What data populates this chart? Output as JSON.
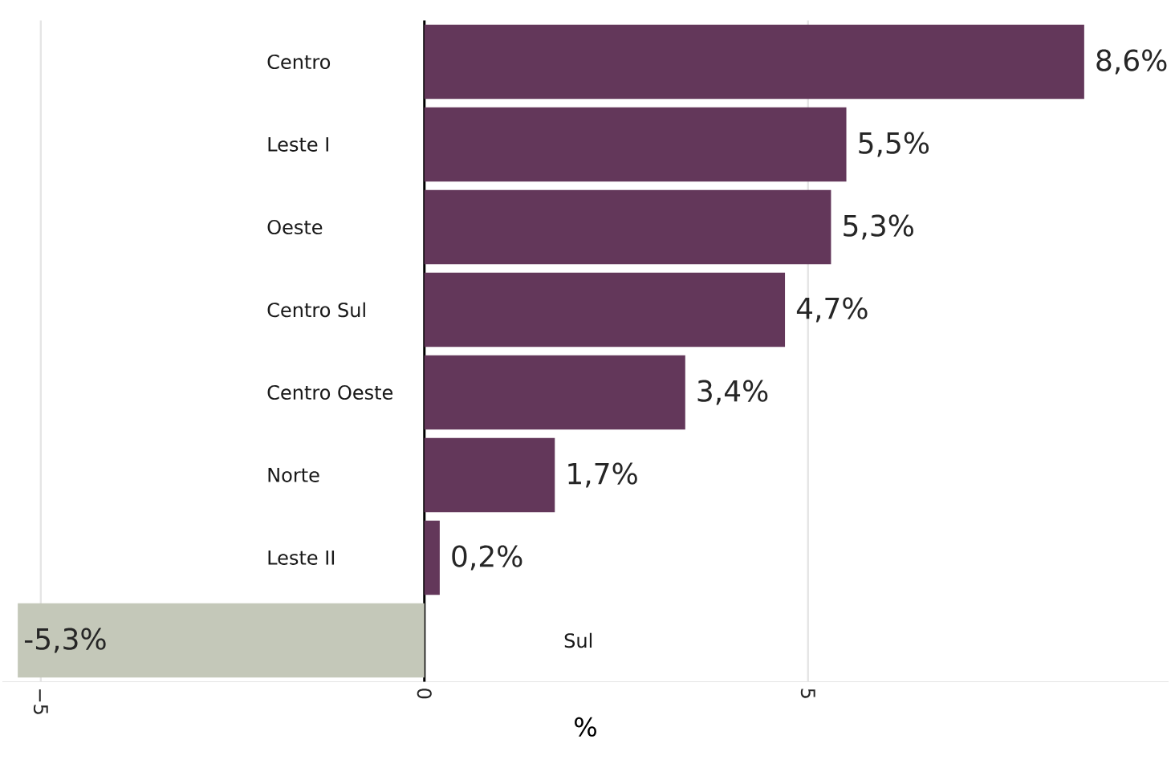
{
  "chart_data": {
    "type": "bar",
    "orientation": "horizontal",
    "xlabel": "%",
    "categories": [
      "Centro",
      "Leste I",
      "Oeste",
      "Centro Sul",
      "Centro Oeste",
      "Norte",
      "Leste II",
      "Sul"
    ],
    "values": [
      8.6,
      5.5,
      5.3,
      4.7,
      3.4,
      1.7,
      0.2,
      -5.3
    ],
    "colors": [
      "#63375a",
      "#63375a",
      "#63375a",
      "#63375a",
      "#63375a",
      "#63375a",
      "#63375a",
      "#c4c8b9"
    ],
    "value_labels": [
      "8,6%",
      "5,5%",
      "5,3%",
      "4,7%",
      "3,4%",
      "1,7%",
      "0,2%",
      "-5,3%"
    ],
    "xticks": [
      {
        "value": -5,
        "label": "−5"
      },
      0,
      5
    ],
    "xlim": [
      -5.5,
      9.7
    ],
    "grid": "x"
  }
}
